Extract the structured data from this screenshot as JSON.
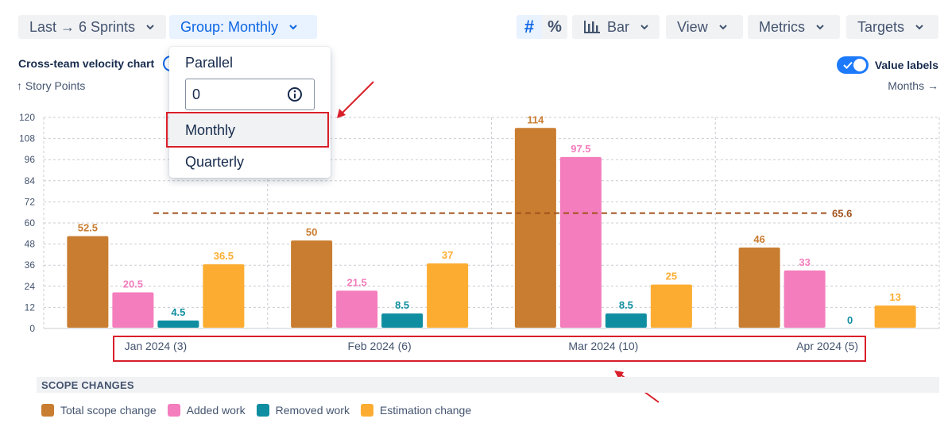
{
  "toolbar": {
    "range_label": "Last → 6 Sprints",
    "group_label": "Group: Monthly",
    "hash_symbol": "#",
    "percent_symbol": "%",
    "chart_type_label": "Bar",
    "view_label": "View",
    "metrics_label": "Metrics",
    "targets_label": "Targets"
  },
  "header": {
    "title": "Cross-team velocity chart",
    "value_labels_label": "Value labels",
    "value_labels_on": true
  },
  "group_dropdown": {
    "items": [
      "Parallel",
      "Monthly",
      "Quarterly"
    ],
    "parallel_input_value": "0",
    "selected": "Monthly"
  },
  "legend": {
    "section_title": "SCOPE CHANGES"
  },
  "colors": {
    "total": "#c97d31",
    "added": "#f47dbd",
    "removed": "#0f8ea1",
    "estimation": "#fcad31",
    "target": "#a0521c",
    "highlight": "#d91f2a"
  },
  "chart_data": {
    "type": "bar",
    "title": "Cross-team velocity chart",
    "ylabel": "↑ Story Points",
    "xlabel": "Months →",
    "categories": [
      "Jan 2024 (3)",
      "Feb 2024 (6)",
      "Mar 2024 (10)",
      "Apr 2024 (5)"
    ],
    "ylim": [
      0,
      120
    ],
    "yticks": [
      "0",
      "12",
      "24",
      "36",
      "48",
      "60",
      "72",
      "84",
      "96",
      "108",
      "120"
    ],
    "grid": true,
    "legend_position": "bottom",
    "series": [
      {
        "name": "Total scope change",
        "values": [
          52.5,
          50,
          114,
          46
        ],
        "labels": [
          "52.5",
          "50",
          "114",
          "46"
        ]
      },
      {
        "name": "Added work",
        "values": [
          20.5,
          21.5,
          97.5,
          33
        ],
        "labels": [
          "20.5",
          "21.5",
          "97.5",
          "33"
        ]
      },
      {
        "name": "Removed work",
        "values": [
          4.5,
          8.5,
          8.5,
          0
        ],
        "labels": [
          "4.5",
          "8.5",
          "8.5",
          "0"
        ]
      },
      {
        "name": "Estimation change",
        "values": [
          36.5,
          37,
          25,
          13
        ],
        "labels": [
          "36.5",
          "37",
          "25",
          "13"
        ]
      }
    ],
    "target_line": {
      "value": 65.6,
      "label": "65.6"
    }
  }
}
